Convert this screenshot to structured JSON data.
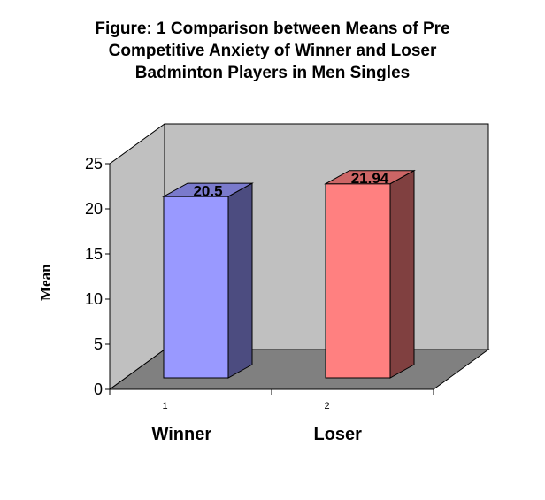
{
  "chart_data": {
    "type": "bar",
    "title_lines": [
      "Figure: 1 Comparison between Means of Pre",
      "Competitive Anxiety of Winner and Loser",
      "Badminton Players in Men Singles"
    ],
    "ylabel": "Mean",
    "ylim": [
      0,
      25
    ],
    "yticks": [
      0,
      5,
      10,
      15,
      20,
      25
    ],
    "tick_labels": [
      "1",
      "2"
    ],
    "categories": [
      "Winner",
      "Loser"
    ],
    "values": [
      20.5,
      21.94
    ],
    "value_labels": [
      "20.5",
      "21.94"
    ],
    "bar_colors": [
      "#9999ff",
      "#ff8080"
    ],
    "bar_side_colors": [
      "#4c4c80",
      "#804040"
    ],
    "bar_top_colors": [
      "#7a7acc",
      "#cc6666"
    ],
    "wall_color": "#c0c0c0",
    "floor_color": "#808080",
    "grid": false,
    "legend": "none"
  }
}
